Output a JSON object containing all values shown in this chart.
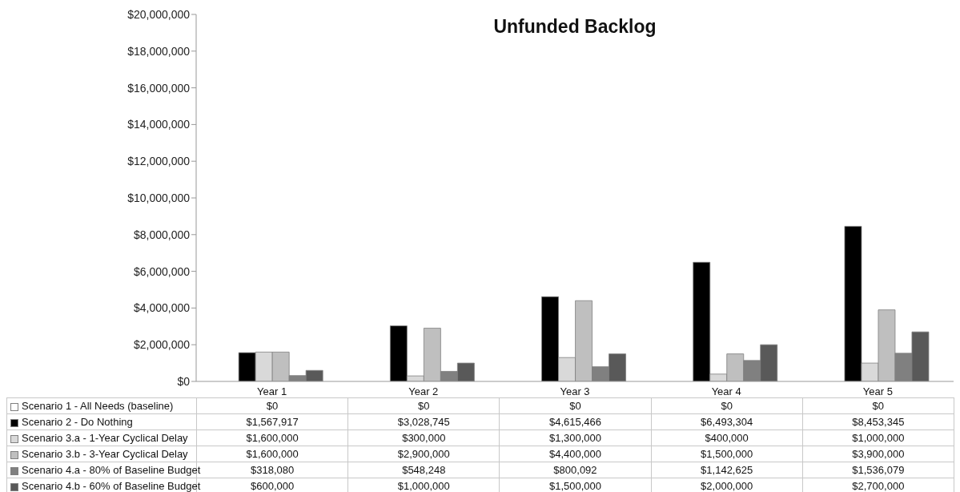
{
  "chart_data": {
    "type": "bar",
    "title": "Unfunded Backlog",
    "categories": [
      "Year 1",
      "Year 2",
      "Year 3",
      "Year 4",
      "Year 5"
    ],
    "series": [
      {
        "name": "Scenario 1 - All Needs (baseline)",
        "color": "#ffffff",
        "values": [
          0,
          0,
          0,
          0,
          0
        ],
        "value_labels": [
          "$0",
          "$0",
          "$0",
          "$0",
          "$0"
        ]
      },
      {
        "name": "Scenario 2 - Do Nothing",
        "color": "#000000",
        "values": [
          1567917,
          3028745,
          4615466,
          6493304,
          8453345
        ],
        "value_labels": [
          "$1,567,917",
          "$3,028,745",
          "$4,615,466",
          "$6,493,304",
          "$8,453,345"
        ]
      },
      {
        "name": "Scenario 3.a - 1-Year Cyclical Delay",
        "color": "#d9d9d9",
        "values": [
          1600000,
          300000,
          1300000,
          400000,
          1000000
        ],
        "value_labels": [
          "$1,600,000",
          "$300,000",
          "$1,300,000",
          "$400,000",
          "$1,000,000"
        ]
      },
      {
        "name": "Scenario 3.b - 3-Year Cyclical Delay",
        "color": "#bfbfbf",
        "values": [
          1600000,
          2900000,
          4400000,
          1500000,
          3900000
        ],
        "value_labels": [
          "$1,600,000",
          "$2,900,000",
          "$4,400,000",
          "$1,500,000",
          "$3,900,000"
        ]
      },
      {
        "name": "Scenario 4.a - 80% of Baseline Budget",
        "color": "#808080",
        "values": [
          318080,
          548248,
          800092,
          1142625,
          1536079
        ],
        "value_labels": [
          "$318,080",
          "$548,248",
          "$800,092",
          "$1,142,625",
          "$1,536,079"
        ]
      },
      {
        "name": "Scenario 4.b - 60% of Baseline Budget",
        "color": "#595959",
        "values": [
          600000,
          1000000,
          1500000,
          2000000,
          2700000
        ],
        "value_labels": [
          "$600,000",
          "$1,000,000",
          "$1,500,000",
          "$2,000,000",
          "$2,700,000"
        ]
      }
    ],
    "ylim": [
      0,
      20000000
    ],
    "yticks": [
      {
        "value": 0,
        "label": "$0"
      },
      {
        "value": 2000000,
        "label": "$2,000,000"
      },
      {
        "value": 4000000,
        "label": "$4,000,000"
      },
      {
        "value": 6000000,
        "label": "$6,000,000"
      },
      {
        "value": 8000000,
        "label": "$8,000,000"
      },
      {
        "value": 10000000,
        "label": "$10,000,000"
      },
      {
        "value": 12000000,
        "label": "$12,000,000"
      },
      {
        "value": 14000000,
        "label": "$14,000,000"
      },
      {
        "value": 16000000,
        "label": "$16,000,000"
      },
      {
        "value": 18000000,
        "label": "$18,000,000"
      },
      {
        "value": 20000000,
        "label": "$20,000,000"
      }
    ],
    "grid": false,
    "legend": "bottom"
  }
}
